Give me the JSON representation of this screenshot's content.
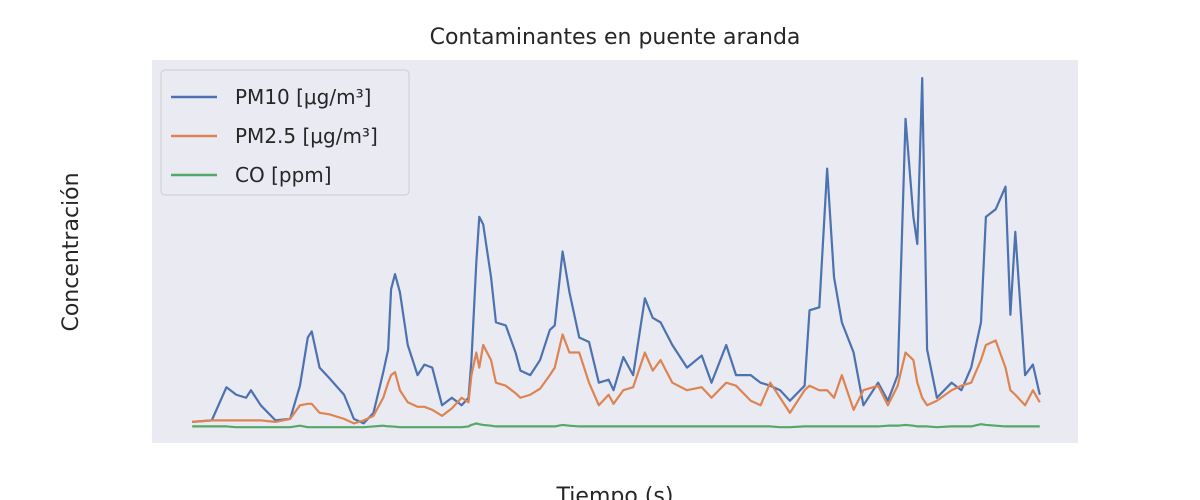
{
  "chart_data": {
    "type": "line",
    "title": "Contaminantes en puente aranda",
    "xlabel": "Tiempo (s)",
    "ylabel": "Concentración",
    "x": [
      0,
      20000,
      35000,
      45000,
      55000,
      60000,
      70000,
      85000,
      100000,
      110000,
      118000,
      122000,
      130000,
      140000,
      155000,
      165000,
      175000,
      185000,
      195000,
      200000,
      203000,
      207000,
      212000,
      220000,
      230000,
      237000,
      245000,
      255000,
      265000,
      275000,
      282000,
      285000,
      290000,
      293000,
      297000,
      305000,
      310000,
      320000,
      330000,
      335000,
      345000,
      355000,
      365000,
      370000,
      378000,
      385000,
      395000,
      405000,
      415000,
      425000,
      430000,
      440000,
      450000,
      462000,
      470000,
      478000,
      490000,
      505000,
      520000,
      530000,
      545000,
      555000,
      570000,
      580000,
      590000,
      600000,
      610000,
      625000,
      630000,
      640000,
      648000,
      655000,
      663000,
      675000,
      685000,
      700000,
      710000,
      720000,
      728000,
      736000,
      740000,
      745000,
      750000,
      760000,
      775000,
      785000,
      795000,
      805000,
      810000,
      820000,
      830000,
      835000,
      840000,
      850000,
      858000,
      865000
    ],
    "series": [
      {
        "name": "PM10 [μg/m³]",
        "color": "#4c72b0",
        "values": [
          4,
          5,
          27,
          22,
          20,
          25,
          15,
          5,
          6,
          28,
          60,
          64,
          40,
          33,
          22,
          6,
          3,
          10,
          37,
          52,
          92,
          102,
          90,
          55,
          35,
          42,
          40,
          15,
          20,
          15,
          20,
          45,
          110,
          140,
          135,
          100,
          70,
          68,
          50,
          38,
          35,
          45,
          65,
          68,
          117,
          90,
          60,
          57,
          30,
          32,
          25,
          47,
          35,
          86,
          73,
          70,
          55,
          40,
          48,
          30,
          55,
          35,
          35,
          30,
          28,
          25,
          18,
          28,
          78,
          80,
          172,
          100,
          70,
          50,
          15,
          30,
          18,
          35,
          205,
          140,
          122,
          232,
          52,
          20,
          30,
          25,
          40,
          70,
          140,
          145,
          160,
          75,
          130,
          35,
          42,
          22
        ]
      },
      {
        "name": "PM2.5 [μg/m³]",
        "color": "#dd8452",
        "values": [
          4,
          5,
          5,
          5,
          5,
          5,
          5,
          4,
          6,
          15,
          16,
          16,
          10,
          9,
          6,
          3,
          5,
          8,
          20,
          30,
          35,
          37,
          25,
          17,
          14,
          14,
          12,
          8,
          13,
          20,
          17,
          35,
          50,
          40,
          55,
          45,
          30,
          28,
          23,
          20,
          22,
          26,
          35,
          40,
          62,
          50,
          50,
          30,
          15,
          22,
          16,
          25,
          27,
          50,
          38,
          45,
          30,
          25,
          27,
          20,
          30,
          28,
          18,
          15,
          30,
          20,
          10,
          25,
          28,
          25,
          25,
          20,
          35,
          12,
          25,
          28,
          15,
          28,
          50,
          45,
          30,
          20,
          15,
          18,
          25,
          28,
          30,
          45,
          55,
          58,
          40,
          25,
          22,
          15,
          25,
          17
        ]
      },
      {
        "name": "CO [ppm]",
        "color": "#55a868",
        "values": [
          1,
          1,
          1,
          0.5,
          0.5,
          0.5,
          0.5,
          0.5,
          0.5,
          1.5,
          0.5,
          0.5,
          0.5,
          0.5,
          0.5,
          0.5,
          0.5,
          1,
          1.5,
          1,
          1,
          0.8,
          0.5,
          0.5,
          0.5,
          0.5,
          0.5,
          0.5,
          0.5,
          0.5,
          1,
          2,
          3,
          2.5,
          2,
          1.5,
          1,
          1,
          1,
          1,
          1,
          1,
          1,
          1,
          2,
          1.5,
          1,
          1,
          1,
          1,
          1,
          1,
          1,
          1,
          1,
          1,
          1,
          1,
          1,
          1,
          1,
          1,
          1,
          1,
          1,
          0.5,
          0.5,
          1,
          1,
          1,
          1,
          1,
          1,
          1,
          1,
          1,
          1.5,
          1.5,
          2,
          1.5,
          1,
          1,
          1,
          0.5,
          1,
          1,
          1,
          2.5,
          2,
          1.5,
          1,
          1,
          1,
          1,
          1,
          1
        ]
      }
    ],
    "xlim": [
      -41000,
      904000
    ],
    "ylim": [
      -10,
      244
    ],
    "xticks": [
      0,
      200000,
      400000,
      600000,
      800000
    ],
    "yticks": [
      0,
      50,
      100,
      150,
      200
    ],
    "grid": true,
    "legend": "upper left"
  }
}
